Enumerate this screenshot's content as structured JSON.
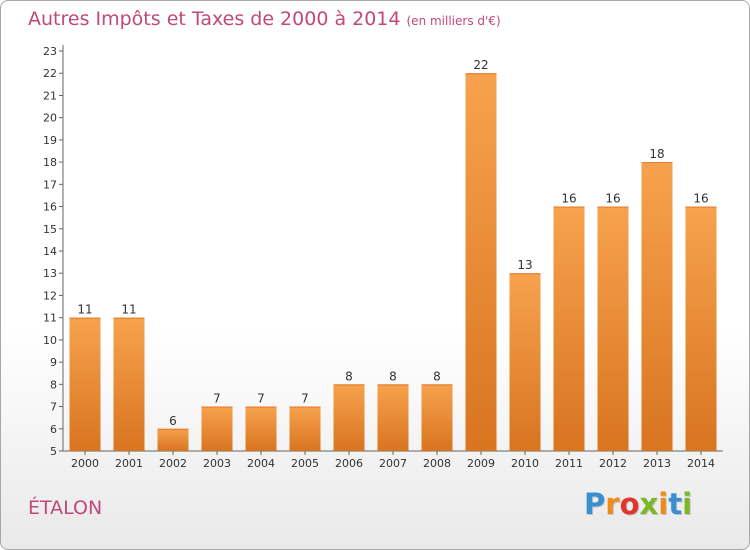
{
  "header": {
    "title": "Autres Impôts et Taxes de 2000 à 2014",
    "subtitle": "(en milliers d'€)"
  },
  "footer": {
    "place": "ÉTALON",
    "logo_letters": [
      "P",
      "r",
      "o",
      "x",
      "i",
      "t",
      "i"
    ],
    "logo_colors": [
      "#3a8fd0",
      "#f08a1c",
      "#e0342c",
      "#7ab828",
      "#f08a1c",
      "#3a8fd0",
      "#7ab828"
    ],
    "title_color": "#c0487a"
  },
  "chart_data": {
    "type": "bar",
    "title": "Autres Impôts et Taxes de 2000 à 2014",
    "subtitle": "(en milliers d'€)",
    "categories": [
      "2000",
      "2001",
      "2002",
      "2003",
      "2004",
      "2005",
      "2006",
      "2007",
      "2008",
      "2009",
      "2010",
      "2011",
      "2012",
      "2013",
      "2014"
    ],
    "values": [
      11,
      11,
      6,
      7,
      7,
      7,
      8,
      8,
      8,
      22,
      13,
      16,
      16,
      18,
      16
    ],
    "ylim": [
      5,
      23
    ],
    "yticks": [
      5,
      6,
      7,
      8,
      9,
      10,
      11,
      12,
      13,
      14,
      15,
      16,
      17,
      18,
      19,
      20,
      21,
      22,
      23
    ],
    "xlabel": "",
    "ylabel": "",
    "grid": false,
    "bar_color_light": "#f7a24e",
    "bar_color_dark": "#d9741f"
  }
}
